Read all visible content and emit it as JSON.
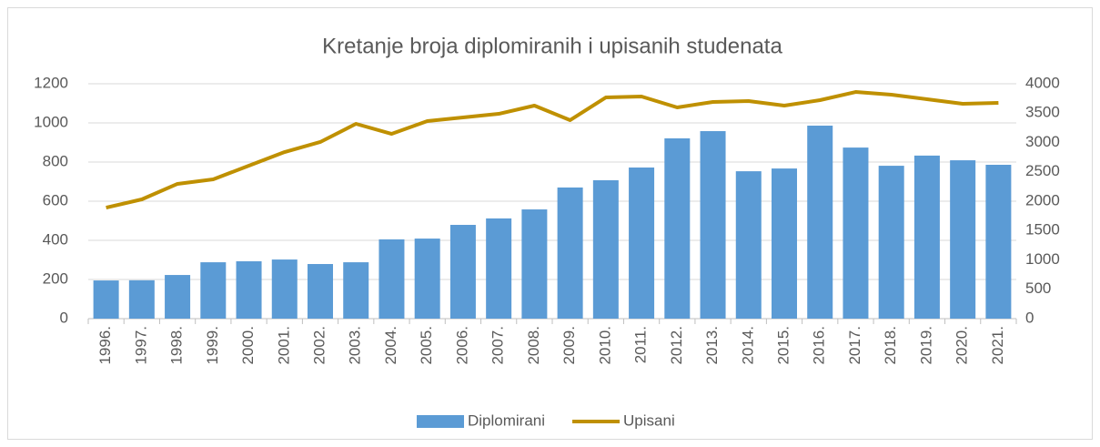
{
  "chart_data": {
    "type": "bar-line",
    "title": "Kretanje broja diplomiranih i upisanih studenata",
    "categories": [
      "1996.",
      "1997.",
      "1998.",
      "1999.",
      "2000.",
      "2001.",
      "2002.",
      "2003.",
      "2004.",
      "2005.",
      "2006.",
      "2007.",
      "2008.",
      "2009.",
      "2010.",
      "2011.",
      "2012.",
      "2013.",
      "2014.",
      "2015.",
      "2016.",
      "2017.",
      "2018.",
      "2019.",
      "2020.",
      "2021."
    ],
    "series": [
      {
        "name": "Diplomirani",
        "type": "bar",
        "color": "#5b9bd5",
        "values": [
          195,
          196,
          223,
          288,
          293,
          302,
          279,
          288,
          405,
          409,
          479,
          512,
          558,
          670,
          707,
          772,
          921,
          958,
          753,
          767,
          986,
          874,
          781,
          833,
          809,
          786
        ]
      },
      {
        "name": "Upisani",
        "type": "line",
        "axis": "y2",
        "color": "#bf9000",
        "values": [
          1891,
          2031,
          2295,
          2372,
          2605,
          2837,
          3008,
          3318,
          3147,
          3364,
          3426,
          3488,
          3628,
          3380,
          3767,
          3783,
          3597,
          3690,
          3705,
          3628,
          3721,
          3860,
          3814,
          3736,
          3659,
          3674
        ]
      }
    ],
    "ylim": [
      0,
      1200
    ],
    "yticks": [
      0,
      200,
      400,
      600,
      800,
      1000,
      1200
    ],
    "y2lim": [
      0,
      4000
    ],
    "y2ticks": [
      0,
      500,
      1000,
      1500,
      2000,
      2500,
      3000,
      3500,
      4000
    ],
    "grid": true,
    "legend": "bottom"
  }
}
